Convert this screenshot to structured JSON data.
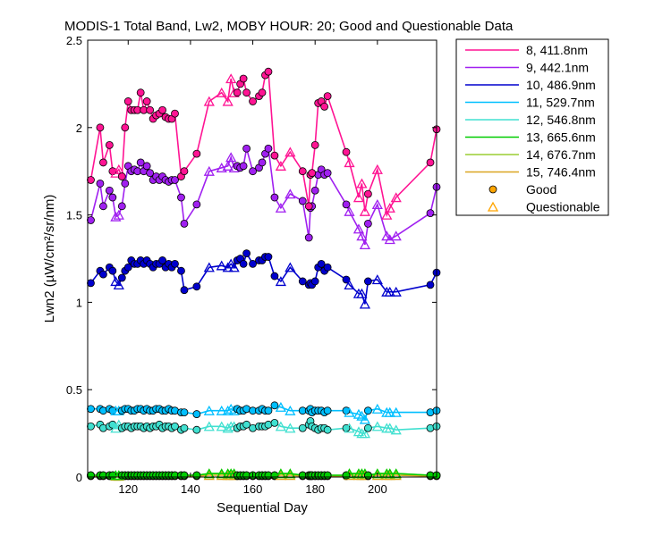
{
  "figure": {
    "background": "#ffffff"
  },
  "chart_data": {
    "type": "line",
    "title": "MODIS-1 Total Band, Lw2, MOBY HOUR: 20;  Good and Questionable Data",
    "xlabel": "Sequential Day",
    "ylabel": "Lwn2 (µW/cm²/sr/nm)",
    "xlim": [
      107,
      219
    ],
    "ylim": [
      0,
      2.5
    ],
    "xticks": [
      120,
      140,
      160,
      180,
      200
    ],
    "yticks": [
      0,
      0.5,
      1,
      1.5,
      2,
      2.5
    ],
    "ytick_labels": [
      "0",
      "0.5",
      "1",
      "1.5",
      "2",
      "2.5"
    ],
    "grid": false,
    "legend_position": "outside-right",
    "marker_legend": [
      {
        "label": "Good",
        "marker": "circle",
        "color": "#ffa500"
      },
      {
        "label": "Questionable",
        "marker": "triangle",
        "color": "#ffa500"
      }
    ],
    "x": [
      108,
      111,
      112,
      114,
      115,
      116,
      117,
      118,
      119,
      120,
      121,
      122,
      123,
      124,
      125,
      126,
      127,
      128,
      129,
      130,
      131,
      132,
      133,
      134,
      135,
      137,
      138,
      142,
      146,
      150,
      152,
      153,
      154,
      155,
      156,
      157,
      158,
      160,
      162,
      163,
      164,
      165,
      167,
      169,
      172,
      176,
      178,
      178.5,
      179,
      180,
      181,
      182,
      183,
      184,
      190,
      191,
      194,
      195,
      196,
      197,
      200,
      203,
      204,
      206,
      217,
      219
    ],
    "flags": [
      "G",
      "G",
      "G",
      "G",
      "G",
      "Q",
      "Q",
      "G",
      "G",
      "G",
      "G",
      "G",
      "G",
      "G",
      "G",
      "G",
      "G",
      "G",
      "G",
      "G",
      "G",
      "G",
      "G",
      "G",
      "G",
      "G",
      "G",
      "G",
      "Q",
      "Q",
      "Q",
      "Q",
      "Q",
      "G",
      "G",
      "G",
      "G",
      "G",
      "G",
      "G",
      "G",
      "G",
      "G",
      "Q",
      "Q",
      "G",
      "G",
      "G",
      "G",
      "G",
      "G",
      "G",
      "G",
      "G",
      "G",
      "Q",
      "Q",
      "Q",
      "Q",
      "G",
      "Q",
      "Q",
      "Q",
      "Q",
      "G",
      "G"
    ],
    "series": [
      {
        "name": "8, 411.8nm",
        "color": "#ff1493",
        "values": [
          1.7,
          2.0,
          1.8,
          1.9,
          1.75,
          1.74,
          1.76,
          1.72,
          2.0,
          2.15,
          2.1,
          2.1,
          2.1,
          2.2,
          2.1,
          2.15,
          2.1,
          2.05,
          2.07,
          2.08,
          2.1,
          2.06,
          2.05,
          2.05,
          2.08,
          1.72,
          1.75,
          1.85,
          2.15,
          2.2,
          2.15,
          2.28,
          2.2,
          2.2,
          2.25,
          2.28,
          2.2,
          2.15,
          2.18,
          2.2,
          2.3,
          2.32,
          1.84,
          1.78,
          1.86,
          1.75,
          1.55,
          1.73,
          1.74,
          1.9,
          2.14,
          2.15,
          2.12,
          2.18,
          1.86,
          1.8,
          1.6,
          1.68,
          1.52,
          1.62,
          1.76,
          1.5,
          1.54,
          1.6,
          1.8,
          1.99
        ]
      },
      {
        "name": "9, 442.1nm",
        "color": "#a020f0",
        "values": [
          1.47,
          1.68,
          1.55,
          1.64,
          1.6,
          1.49,
          1.5,
          1.55,
          1.68,
          1.78,
          1.75,
          1.76,
          1.75,
          1.8,
          1.75,
          1.78,
          1.74,
          1.7,
          1.72,
          1.7,
          1.72,
          1.7,
          1.69,
          1.7,
          1.7,
          1.6,
          1.45,
          1.56,
          1.75,
          1.77,
          1.78,
          1.83,
          1.77,
          1.78,
          1.77,
          1.78,
          1.88,
          1.75,
          1.77,
          1.8,
          1.85,
          1.88,
          1.6,
          1.54,
          1.62,
          1.58,
          1.37,
          1.54,
          1.55,
          1.64,
          1.73,
          1.76,
          1.73,
          1.74,
          1.56,
          1.52,
          1.42,
          1.38,
          1.33,
          1.45,
          1.56,
          1.38,
          1.36,
          1.38,
          1.51,
          1.66
        ]
      },
      {
        "name": "10, 486.9nm",
        "color": "#0000cd",
        "values": [
          1.11,
          1.18,
          1.16,
          1.2,
          1.18,
          1.12,
          1.1,
          1.14,
          1.18,
          1.2,
          1.24,
          1.22,
          1.22,
          1.24,
          1.22,
          1.24,
          1.22,
          1.2,
          1.22,
          1.22,
          1.24,
          1.2,
          1.22,
          1.2,
          1.22,
          1.18,
          1.07,
          1.09,
          1.2,
          1.21,
          1.2,
          1.22,
          1.2,
          1.24,
          1.25,
          1.22,
          1.28,
          1.22,
          1.24,
          1.24,
          1.26,
          1.26,
          1.15,
          1.12,
          1.2,
          1.12,
          1.1,
          1.11,
          1.1,
          1.12,
          1.2,
          1.22,
          1.18,
          1.2,
          1.13,
          1.1,
          1.05,
          1.05,
          0.99,
          1.12,
          1.13,
          1.06,
          1.06,
          1.06,
          1.1,
          1.17
        ]
      },
      {
        "name": "11, 529.7nm",
        "color": "#00bfff",
        "values": [
          0.39,
          0.39,
          0.38,
          0.39,
          0.38,
          0.38,
          0.38,
          0.38,
          0.39,
          0.39,
          0.38,
          0.38,
          0.39,
          0.39,
          0.38,
          0.39,
          0.38,
          0.38,
          0.39,
          0.39,
          0.38,
          0.38,
          0.39,
          0.38,
          0.38,
          0.37,
          0.37,
          0.36,
          0.38,
          0.38,
          0.38,
          0.39,
          0.38,
          0.39,
          0.38,
          0.38,
          0.39,
          0.38,
          0.38,
          0.39,
          0.38,
          0.38,
          0.41,
          0.4,
          0.38,
          0.38,
          0.38,
          0.39,
          0.37,
          0.38,
          0.38,
          0.38,
          0.37,
          0.38,
          0.38,
          0.37,
          0.36,
          0.35,
          0.33,
          0.38,
          0.39,
          0.37,
          0.37,
          0.37,
          0.37,
          0.38
        ]
      },
      {
        "name": "12, 546.8nm",
        "color": "#40e0d0",
        "values": [
          0.29,
          0.3,
          0.28,
          0.29,
          0.3,
          0.28,
          0.3,
          0.28,
          0.29,
          0.29,
          0.28,
          0.29,
          0.29,
          0.29,
          0.28,
          0.29,
          0.28,
          0.29,
          0.29,
          0.3,
          0.28,
          0.29,
          0.29,
          0.28,
          0.29,
          0.27,
          0.28,
          0.27,
          0.29,
          0.29,
          0.28,
          0.29,
          0.29,
          0.28,
          0.29,
          0.29,
          0.3,
          0.28,
          0.29,
          0.29,
          0.29,
          0.3,
          0.31,
          0.29,
          0.28,
          0.28,
          0.3,
          0.32,
          0.29,
          0.28,
          0.27,
          0.28,
          0.28,
          0.27,
          0.28,
          0.28,
          0.26,
          0.25,
          0.25,
          0.28,
          0.29,
          0.28,
          0.28,
          0.27,
          0.28,
          0.29
        ]
      },
      {
        "name": "13, 665.6nm",
        "color": "#00cd00",
        "values": [
          0.01,
          0.01,
          0.01,
          0.01,
          0.01,
          0.01,
          0.01,
          0.01,
          0.01,
          0.01,
          0.01,
          0.01,
          0.01,
          0.01,
          0.01,
          0.01,
          0.01,
          0.01,
          0.01,
          0.01,
          0.01,
          0.01,
          0.01,
          0.01,
          0.01,
          0.01,
          0.01,
          0.01,
          0.02,
          0.02,
          0.02,
          0.02,
          0.02,
          0.01,
          0.01,
          0.01,
          0.01,
          0.01,
          0.01,
          0.01,
          0.01,
          0.01,
          0.01,
          0.02,
          0.02,
          0.01,
          0.01,
          0.01,
          0.01,
          0.01,
          0.01,
          0.01,
          0.01,
          0.01,
          0.01,
          0.02,
          0.02,
          0.02,
          0.02,
          0.01,
          0.02,
          0.02,
          0.02,
          0.02,
          0.01,
          0.01
        ]
      },
      {
        "name": "14, 676.7nm",
        "color": "#9acd32",
        "values": [
          0.01,
          0.01,
          0.01,
          0.01,
          0.01,
          0.01,
          0.01,
          0.01,
          0.01,
          0.01,
          0.01,
          0.01,
          0.01,
          0.01,
          0.01,
          0.01,
          0.01,
          0.01,
          0.01,
          0.01,
          0.01,
          0.01,
          0.01,
          0.01,
          0.01,
          0.01,
          0.01,
          0.01,
          0.02,
          0.02,
          0.02,
          0.02,
          0.02,
          0.01,
          0.01,
          0.01,
          0.01,
          0.01,
          0.01,
          0.01,
          0.01,
          0.01,
          0.01,
          0.02,
          0.02,
          0.01,
          0.01,
          0.01,
          0.01,
          0.01,
          0.01,
          0.01,
          0.01,
          0.01,
          0.01,
          0.02,
          0.02,
          0.02,
          0.02,
          0.01,
          0.02,
          0.02,
          0.02,
          0.02,
          0.01,
          0.01
        ]
      },
      {
        "name": "15, 746.4nm",
        "color": "#daa520",
        "values": [
          0.005,
          0.005,
          0.005,
          0.005,
          0.005,
          0.005,
          0.005,
          0.005,
          0.005,
          0.005,
          0.005,
          0.005,
          0.005,
          0.005,
          0.005,
          0.005,
          0.005,
          0.005,
          0.005,
          0.005,
          0.005,
          0.005,
          0.005,
          0.005,
          0.005,
          0.005,
          0.005,
          0.005,
          0.01,
          0.01,
          0.01,
          0.01,
          0.01,
          0.005,
          0.005,
          0.005,
          0.005,
          0.005,
          0.005,
          0.005,
          0.005,
          0.005,
          0.005,
          0.01,
          0.01,
          0.005,
          0.005,
          0.005,
          0.005,
          0.005,
          0.005,
          0.005,
          0.005,
          0.005,
          0.005,
          0.01,
          0.01,
          0.01,
          0.01,
          0.005,
          0.01,
          0.01,
          0.01,
          0.01,
          0.005,
          0.005
        ]
      }
    ]
  }
}
